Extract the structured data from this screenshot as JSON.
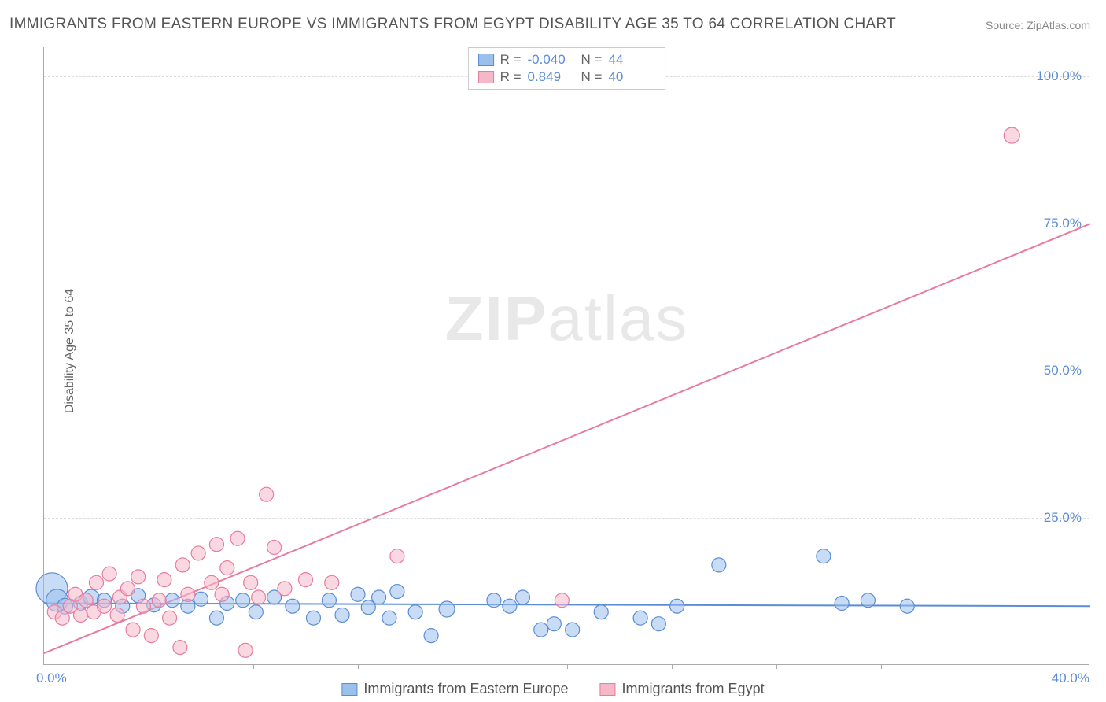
{
  "title": "IMMIGRANTS FROM EASTERN EUROPE VS IMMIGRANTS FROM EGYPT DISABILITY AGE 35 TO 64 CORRELATION CHART",
  "source": "Source: ZipAtlas.com",
  "ylabel": "Disability Age 35 to 64",
  "watermark_bold": "ZIP",
  "watermark_rest": "atlas",
  "chart": {
    "type": "scatter",
    "xlim": [
      0,
      40
    ],
    "ylim": [
      0,
      105
    ],
    "ytick_values": [
      25,
      50,
      75,
      100
    ],
    "ytick_labels": [
      "25.0%",
      "50.0%",
      "75.0%",
      "100.0%"
    ],
    "xtick_values": [
      4,
      8,
      12,
      16,
      20,
      24,
      28,
      32,
      36
    ],
    "xlabel_min": "0.0%",
    "xlabel_max": "40.0%",
    "grid_color": "#dcdcdc",
    "background_color": "#ffffff",
    "series": [
      {
        "name": "Immigrants from Eastern Europe",
        "color_fill": "#9bc0ec",
        "color_stroke": "#5b8dd6",
        "fill_opacity": 0.55,
        "marker_r": 9,
        "R": "-0.040",
        "N": "44",
        "trend": {
          "x1": 0,
          "y1": 10.5,
          "x2": 40,
          "y2": 10.0,
          "stroke": "#5b8dd6",
          "width": 2
        },
        "points": [
          {
            "x": 0.3,
            "y": 13.0,
            "r": 20
          },
          {
            "x": 0.5,
            "y": 11.0,
            "r": 14
          },
          {
            "x": 0.8,
            "y": 10.0,
            "r": 10
          },
          {
            "x": 1.4,
            "y": 10.5,
            "r": 9
          },
          {
            "x": 1.8,
            "y": 11.5,
            "r": 10
          },
          {
            "x": 2.3,
            "y": 11.0,
            "r": 9
          },
          {
            "x": 3.0,
            "y": 10.0,
            "r": 9
          },
          {
            "x": 3.6,
            "y": 11.8,
            "r": 9
          },
          {
            "x": 4.2,
            "y": 10.2,
            "r": 9
          },
          {
            "x": 4.9,
            "y": 11.0,
            "r": 9
          },
          {
            "x": 5.5,
            "y": 10.0,
            "r": 9
          },
          {
            "x": 6.0,
            "y": 11.2,
            "r": 9
          },
          {
            "x": 6.6,
            "y": 8.0,
            "r": 9
          },
          {
            "x": 7.0,
            "y": 10.5,
            "r": 9
          },
          {
            "x": 7.6,
            "y": 11.0,
            "r": 9
          },
          {
            "x": 8.1,
            "y": 9.0,
            "r": 9
          },
          {
            "x": 8.8,
            "y": 11.5,
            "r": 9
          },
          {
            "x": 9.5,
            "y": 10.0,
            "r": 9
          },
          {
            "x": 10.3,
            "y": 8.0,
            "r": 9
          },
          {
            "x": 10.9,
            "y": 11.0,
            "r": 9
          },
          {
            "x": 11.4,
            "y": 8.5,
            "r": 9
          },
          {
            "x": 12.0,
            "y": 12.0,
            "r": 9
          },
          {
            "x": 12.4,
            "y": 9.8,
            "r": 9
          },
          {
            "x": 12.8,
            "y": 11.5,
            "r": 9
          },
          {
            "x": 13.2,
            "y": 8.0,
            "r": 9
          },
          {
            "x": 13.5,
            "y": 12.5,
            "r": 9
          },
          {
            "x": 14.2,
            "y": 9.0,
            "r": 9
          },
          {
            "x": 14.8,
            "y": 5.0,
            "r": 9
          },
          {
            "x": 15.4,
            "y": 9.5,
            "r": 10
          },
          {
            "x": 17.2,
            "y": 11.0,
            "r": 9
          },
          {
            "x": 17.8,
            "y": 10.0,
            "r": 9
          },
          {
            "x": 18.3,
            "y": 11.5,
            "r": 9
          },
          {
            "x": 19.0,
            "y": 6.0,
            "r": 9
          },
          {
            "x": 19.5,
            "y": 7.0,
            "r": 9
          },
          {
            "x": 20.2,
            "y": 6.0,
            "r": 9
          },
          {
            "x": 21.3,
            "y": 9.0,
            "r": 9
          },
          {
            "x": 22.8,
            "y": 8.0,
            "r": 9
          },
          {
            "x": 23.5,
            "y": 7.0,
            "r": 9
          },
          {
            "x": 24.2,
            "y": 10.0,
            "r": 9
          },
          {
            "x": 25.8,
            "y": 17.0,
            "r": 9
          },
          {
            "x": 29.8,
            "y": 18.5,
            "r": 9
          },
          {
            "x": 30.5,
            "y": 10.5,
            "r": 9
          },
          {
            "x": 31.5,
            "y": 11.0,
            "r": 9
          },
          {
            "x": 33.0,
            "y": 10.0,
            "r": 9
          }
        ]
      },
      {
        "name": "Immigrants from Egypt",
        "color_fill": "#f5b8c8",
        "color_stroke": "#e87ba0",
        "fill_opacity": 0.55,
        "marker_r": 9,
        "R": "0.849",
        "N": "40",
        "trend": {
          "x1": 0,
          "y1": 2.0,
          "x2": 40,
          "y2": 75.0,
          "stroke": "#e87ba0",
          "width": 2
        },
        "points": [
          {
            "x": 0.4,
            "y": 9.0,
            "r": 9
          },
          {
            "x": 0.7,
            "y": 8.0,
            "r": 9
          },
          {
            "x": 1.0,
            "y": 10.0,
            "r": 9
          },
          {
            "x": 1.2,
            "y": 12.0,
            "r": 9
          },
          {
            "x": 1.4,
            "y": 8.5,
            "r": 9
          },
          {
            "x": 1.6,
            "y": 11.0,
            "r": 9
          },
          {
            "x": 1.9,
            "y": 9.0,
            "r": 9
          },
          {
            "x": 2.0,
            "y": 14.0,
            "r": 9
          },
          {
            "x": 2.3,
            "y": 10.0,
            "r": 9
          },
          {
            "x": 2.5,
            "y": 15.5,
            "r": 9
          },
          {
            "x": 2.8,
            "y": 8.5,
            "r": 9
          },
          {
            "x": 2.9,
            "y": 11.5,
            "r": 9
          },
          {
            "x": 3.2,
            "y": 13.0,
            "r": 9
          },
          {
            "x": 3.4,
            "y": 6.0,
            "r": 9
          },
          {
            "x": 3.6,
            "y": 15.0,
            "r": 9
          },
          {
            "x": 3.8,
            "y": 10.0,
            "r": 9
          },
          {
            "x": 4.1,
            "y": 5.0,
            "r": 9
          },
          {
            "x": 4.4,
            "y": 11.0,
            "r": 9
          },
          {
            "x": 4.6,
            "y": 14.5,
            "r": 9
          },
          {
            "x": 4.8,
            "y": 8.0,
            "r": 9
          },
          {
            "x": 5.2,
            "y": 3.0,
            "r": 9
          },
          {
            "x": 5.3,
            "y": 17.0,
            "r": 9
          },
          {
            "x": 5.5,
            "y": 12.0,
            "r": 9
          },
          {
            "x": 5.9,
            "y": 19.0,
            "r": 9
          },
          {
            "x": 6.4,
            "y": 14.0,
            "r": 9
          },
          {
            "x": 6.6,
            "y": 20.5,
            "r": 9
          },
          {
            "x": 6.8,
            "y": 12.0,
            "r": 9
          },
          {
            "x": 7.0,
            "y": 16.5,
            "r": 9
          },
          {
            "x": 7.4,
            "y": 21.5,
            "r": 9
          },
          {
            "x": 7.7,
            "y": 2.5,
            "r": 9
          },
          {
            "x": 7.9,
            "y": 14.0,
            "r": 9
          },
          {
            "x": 8.2,
            "y": 11.5,
            "r": 9
          },
          {
            "x": 8.5,
            "y": 29.0,
            "r": 9
          },
          {
            "x": 8.8,
            "y": 20.0,
            "r": 9
          },
          {
            "x": 9.2,
            "y": 13.0,
            "r": 9
          },
          {
            "x": 10.0,
            "y": 14.5,
            "r": 9
          },
          {
            "x": 11.0,
            "y": 14.0,
            "r": 9
          },
          {
            "x": 13.5,
            "y": 18.5,
            "r": 9
          },
          {
            "x": 19.8,
            "y": 11.0,
            "r": 9
          },
          {
            "x": 37.0,
            "y": 90.0,
            "r": 10
          }
        ]
      }
    ]
  },
  "legend_top": {
    "rows": [
      {
        "swatch_fill": "#9bc0ec",
        "swatch_stroke": "#5b8dd6",
        "r_label": "R =",
        "r_val": "-0.040",
        "n_label": "N =",
        "n_val": "44"
      },
      {
        "swatch_fill": "#f5b8c8",
        "swatch_stroke": "#e87ba0",
        "r_label": "R =",
        "r_val": "0.849",
        "n_label": "N =",
        "n_val": "40"
      }
    ]
  },
  "legend_bottom": {
    "items": [
      {
        "swatch_fill": "#9bc0ec",
        "swatch_stroke": "#5b8dd6",
        "label": "Immigrants from Eastern Europe"
      },
      {
        "swatch_fill": "#f5b8c8",
        "swatch_stroke": "#e87ba0",
        "label": "Immigrants from Egypt"
      }
    ]
  }
}
